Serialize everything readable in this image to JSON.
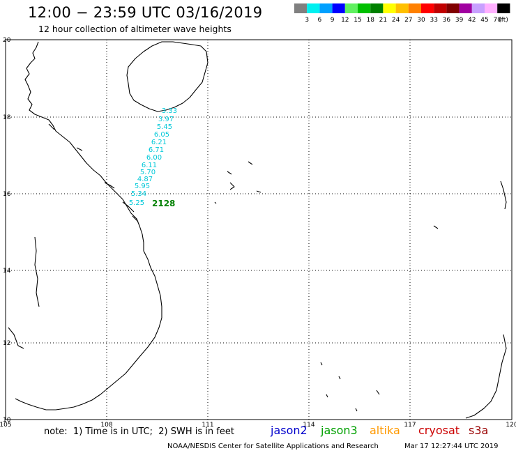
{
  "header": {
    "title": "12:00 − 23:59 UTC 03/16/2019",
    "subtitle": "12 hour collection of altimeter wave heights"
  },
  "legend": {
    "colors": [
      "#808080",
      "#00f0f0",
      "#00a0ff",
      "#0000ff",
      "#60f060",
      "#00c000",
      "#008000",
      "#ffff00",
      "#ffc000",
      "#ff8000",
      "#ff0000",
      "#c00000",
      "#800000",
      "#a000a0",
      "#c8a0ff",
      "#ffb0ff",
      "#000000"
    ],
    "labels": [
      "3",
      "6",
      "9",
      "12",
      "15",
      "18",
      "21",
      "24",
      "27",
      "30",
      "33",
      "36",
      "39",
      "42",
      "45",
      "70"
    ],
    "unit": "(ft)"
  },
  "map": {
    "lon_ticks": [
      "105",
      "108",
      "111",
      "114",
      "117",
      "120"
    ],
    "lat_ticks": [
      "20",
      "18",
      "16",
      "14",
      "12",
      "10"
    ],
    "track_color": "#00c8d8",
    "track_values": [
      "3.33",
      "3.97",
      "5.45",
      "6.05",
      "6.21",
      "6.71",
      "6.00",
      "6.11",
      "5.70",
      "4.87",
      "5.95",
      "5.34",
      "5.25"
    ],
    "track_id": "2128",
    "track_id_color": "#008000"
  },
  "footer": {
    "note": "note:  1) Time is in UTC;  2) SWH is in feet",
    "satellites": [
      {
        "name": "jason2",
        "color": "#0000cc"
      },
      {
        "name": "jason3",
        "color": "#00a000"
      },
      {
        "name": "altika",
        "color": "#ff9900"
      },
      {
        "name": "cryosat",
        "color": "#cc0000"
      },
      {
        "name": "s3a",
        "color": "#990000"
      }
    ],
    "credit": "NOAA/NESDIS Center for Satellite Applications and Research",
    "timestamp": "Mar 17 12:27:44 UTC 2019"
  }
}
